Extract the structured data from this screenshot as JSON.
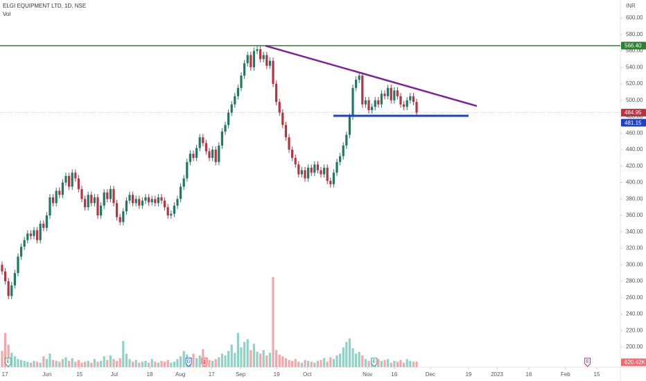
{
  "chart_data": {
    "type": "candlestick",
    "title": "ELGI EQUIPMENT LTD, 1D, NSE",
    "subtitle": "Vol",
    "currency": "INR",
    "up_color": "#1f7a65",
    "down_color": "#b8323f",
    "volume_up_color": "#8fd3c6",
    "volume_down_color": "#f5a6a8",
    "open": [
      300,
      292,
      280,
      262,
      275,
      290,
      310,
      322,
      330,
      338,
      335,
      342,
      330,
      350,
      345,
      360,
      382,
      375,
      390,
      385,
      400,
      408,
      395,
      412,
      405,
      392,
      380,
      370,
      385,
      375,
      382,
      360,
      372,
      388,
      380,
      392,
      375,
      358,
      352,
      365,
      378,
      385,
      375,
      380,
      372,
      378,
      382,
      376,
      380,
      375,
      382,
      378,
      370,
      360,
      362,
      372,
      380,
      395,
      405,
      425,
      435,
      430,
      442,
      455,
      448,
      438,
      430,
      440,
      425,
      445,
      462,
      470,
      485,
      495,
      505,
      515,
      530,
      545,
      555,
      540,
      560,
      562,
      550,
      555,
      542,
      548,
      520,
      498,
      485,
      470,
      455,
      440,
      430,
      422,
      410,
      415,
      405,
      418,
      412,
      422,
      415,
      410,
      418,
      402,
      398,
      412,
      425,
      432,
      445,
      458,
      480,
      515,
      525,
      530,
      495,
      500,
      488,
      492,
      500,
      495,
      508,
      505,
      515,
      500,
      512,
      505,
      495,
      492,
      500,
      505,
      498
    ],
    "high": [
      304,
      296,
      284,
      279,
      294,
      314,
      326,
      334,
      342,
      342,
      346,
      346,
      354,
      354,
      364,
      386,
      386,
      394,
      394,
      404,
      412,
      412,
      416,
      416,
      409,
      396,
      384,
      389,
      389,
      386,
      386,
      376,
      392,
      392,
      396,
      396,
      379,
      362,
      369,
      382,
      389,
      389,
      384,
      384,
      382,
      386,
      386,
      384,
      384,
      386,
      386,
      382,
      374,
      366,
      376,
      384,
      399,
      409,
      429,
      439,
      439,
      446,
      459,
      459,
      452,
      442,
      444,
      444,
      449,
      466,
      474,
      489,
      499,
      509,
      519,
      534,
      549,
      559,
      559,
      564,
      566,
      566,
      559,
      559,
      552,
      552,
      524,
      502,
      489,
      474,
      459,
      444,
      434,
      426,
      419,
      419,
      422,
      422,
      426,
      426,
      419,
      422,
      422,
      406,
      416,
      429,
      436,
      449,
      462,
      484,
      519,
      529,
      534,
      534,
      504,
      504,
      496,
      504,
      504,
      512,
      512,
      519,
      519,
      516,
      516,
      509,
      499,
      504,
      509,
      509,
      502
    ],
    "low": [
      288,
      276,
      258,
      258,
      271,
      286,
      306,
      318,
      326,
      331,
      331,
      326,
      326,
      341,
      341,
      356,
      371,
      371,
      381,
      381,
      396,
      391,
      391,
      401,
      388,
      376,
      366,
      366,
      371,
      371,
      356,
      356,
      368,
      376,
      376,
      371,
      354,
      348,
      348,
      361,
      374,
      371,
      371,
      368,
      368,
      374,
      372,
      372,
      371,
      371,
      374,
      366,
      356,
      356,
      358,
      368,
      376,
      391,
      401,
      421,
      426,
      426,
      438,
      444,
      434,
      426,
      426,
      421,
      421,
      441,
      458,
      466,
      481,
      491,
      501,
      511,
      526,
      541,
      536,
      536,
      556,
      546,
      546,
      538,
      538,
      516,
      494,
      481,
      466,
      451,
      436,
      426,
      418,
      406,
      406,
      401,
      401,
      408,
      408,
      411,
      406,
      406,
      398,
      394,
      394,
      408,
      421,
      428,
      441,
      454,
      476,
      511,
      521,
      491,
      491,
      484,
      484,
      488,
      491,
      491,
      501,
      501,
      496,
      496,
      501,
      491,
      488,
      488,
      496,
      494,
      481
    ],
    "close": [
      292,
      280,
      262,
      275,
      290,
      310,
      322,
      330,
      338,
      335,
      342,
      330,
      350,
      345,
      360,
      382,
      375,
      390,
      385,
      400,
      408,
      395,
      412,
      405,
      392,
      380,
      370,
      385,
      375,
      382,
      360,
      372,
      388,
      380,
      392,
      375,
      358,
      352,
      365,
      378,
      385,
      375,
      380,
      372,
      378,
      382,
      376,
      380,
      375,
      382,
      378,
      370,
      360,
      362,
      372,
      380,
      395,
      405,
      425,
      435,
      430,
      442,
      455,
      448,
      438,
      430,
      440,
      425,
      445,
      462,
      470,
      485,
      495,
      505,
      515,
      530,
      545,
      555,
      540,
      560,
      562,
      550,
      555,
      542,
      548,
      520,
      498,
      485,
      470,
      455,
      440,
      430,
      422,
      410,
      415,
      405,
      418,
      412,
      422,
      415,
      410,
      418,
      402,
      398,
      412,
      425,
      432,
      445,
      458,
      480,
      515,
      525,
      530,
      495,
      500,
      488,
      492,
      500,
      495,
      508,
      505,
      515,
      500,
      512,
      505,
      495,
      492,
      500,
      505,
      498,
      485
    ],
    "volume": [
      1800000,
      3800000,
      2500000,
      1600000,
      1200000,
      900000,
      800000,
      700000,
      600000,
      500000,
      700000,
      600000,
      500000,
      1200000,
      900000,
      1500000,
      800000,
      700000,
      600000,
      900000,
      1100000,
      700000,
      1000000,
      600000,
      800000,
      500000,
      600000,
      700000,
      500000,
      900000,
      600000,
      700000,
      1200000,
      800000,
      1300000,
      900000,
      700000,
      1000000,
      2900000,
      1500000,
      900000,
      600000,
      800000,
      500000,
      600000,
      700000,
      500000,
      900000,
      600000,
      500000,
      700000,
      600000,
      800000,
      500000,
      600000,
      900000,
      1200000,
      1800000,
      1400000,
      1100000,
      1500000,
      1000000,
      1300000,
      2000000,
      900000,
      800000,
      700000,
      900000,
      1100000,
      1500000,
      1300000,
      1800000,
      2500000,
      1600000,
      3800000,
      2200000,
      2800000,
      3100000,
      1900000,
      2600000,
      1700000,
      1500000,
      1900000,
      1300000,
      1600000,
      10000000,
      1900000,
      1400000,
      1200000,
      1000000,
      800000,
      700000,
      900000,
      600000,
      500000,
      800000,
      700000,
      600000,
      500000,
      700000,
      800000,
      1000000,
      600000,
      1100000,
      900000,
      1300000,
      1500000,
      2200000,
      2800000,
      3200000,
      2100000,
      1500000,
      1700000,
      1300000,
      900000,
      700000,
      800000,
      600000,
      900000,
      700000,
      800000,
      900000,
      500000,
      700000,
      600000,
      800000,
      500000,
      900000,
      700000,
      600000,
      620420
    ],
    "xlim": [
      -0.65,
      193.9
    ],
    "ylim": [
      175.6,
      621.9
    ],
    "volume_ylim": [
      0,
      11000000
    ],
    "xticks": [
      {
        "value": 0.9,
        "label": "17"
      },
      {
        "value": 14.1,
        "label": "Jun"
      },
      {
        "value": 24.3,
        "label": "15"
      },
      {
        "value": 35.2,
        "label": "Jul"
      },
      {
        "value": 46.3,
        "label": "18"
      },
      {
        "value": 55.9,
        "label": "Aug"
      },
      {
        "value": 65.7,
        "label": "17"
      },
      {
        "value": 74.8,
        "label": "Sep"
      },
      {
        "value": 86.1,
        "label": "19"
      },
      {
        "value": 95.7,
        "label": "Oct"
      },
      {
        "value": 114.6,
        "label": "Nov"
      },
      {
        "value": 123.0,
        "label": "16"
      },
      {
        "value": 134.3,
        "label": "Dec"
      },
      {
        "value": 146.3,
        "label": "19"
      },
      {
        "value": 155.2,
        "label": "2023"
      },
      {
        "value": 165.2,
        "label": "16"
      },
      {
        "value": 176.7,
        "label": "Feb"
      },
      {
        "value": 186.5,
        "label": "15"
      }
    ],
    "yticks": [
      {
        "value": 200,
        "label": "200.00"
      },
      {
        "value": 220,
        "label": "220.00"
      },
      {
        "value": 240,
        "label": "240.00"
      },
      {
        "value": 260,
        "label": "260.00"
      },
      {
        "value": 280,
        "label": "280.00"
      },
      {
        "value": 300,
        "label": "300.00"
      },
      {
        "value": 320,
        "label": "320.00"
      },
      {
        "value": 340,
        "label": "340.00"
      },
      {
        "value": 360,
        "label": "360.00"
      },
      {
        "value": 380,
        "label": "380.00"
      },
      {
        "value": 400,
        "label": "400.00"
      },
      {
        "value": 420,
        "label": "420.00"
      },
      {
        "value": 440,
        "label": "440.00"
      },
      {
        "value": 460,
        "label": "460.00"
      },
      {
        "value": 480,
        "label": "480.00"
      },
      {
        "value": 500,
        "label": "500.00"
      },
      {
        "value": 520,
        "label": "520.00"
      },
      {
        "value": 540,
        "label": "540.00"
      },
      {
        "value": 560,
        "label": "560.00"
      },
      {
        "value": 580,
        "label": "580.00"
      },
      {
        "value": 600,
        "label": "600.00"
      }
    ],
    "resistance": {
      "value": 566.4,
      "label": "566.40",
      "color": "#2e7d32"
    },
    "support": {
      "value": 481.15,
      "label": "481.15",
      "color": "#1e3fcf"
    },
    "support_range": [
      103.9,
      146.3
    ],
    "last_price": {
      "value": 484.95,
      "label": "484.95",
      "color": "#b8323f"
    },
    "last_volume": {
      "value": 620420,
      "label": "620.42K",
      "color": "#f06a73"
    },
    "trendline": {
      "x": [
        82.6,
        148.9
      ],
      "y": [
        566.3,
        493
      ],
      "color": "#7b1fa2"
    },
    "events": [
      {
        "x": 1.9,
        "label": "E",
        "color": "#26a69a"
      },
      {
        "x": 58.5,
        "label": "D",
        "color": "#2962ff"
      },
      {
        "x": 116.7,
        "label": "E",
        "color": "#26a69a"
      },
      {
        "x": 183.6,
        "label": "E",
        "color": "#d81b9a"
      }
    ]
  }
}
